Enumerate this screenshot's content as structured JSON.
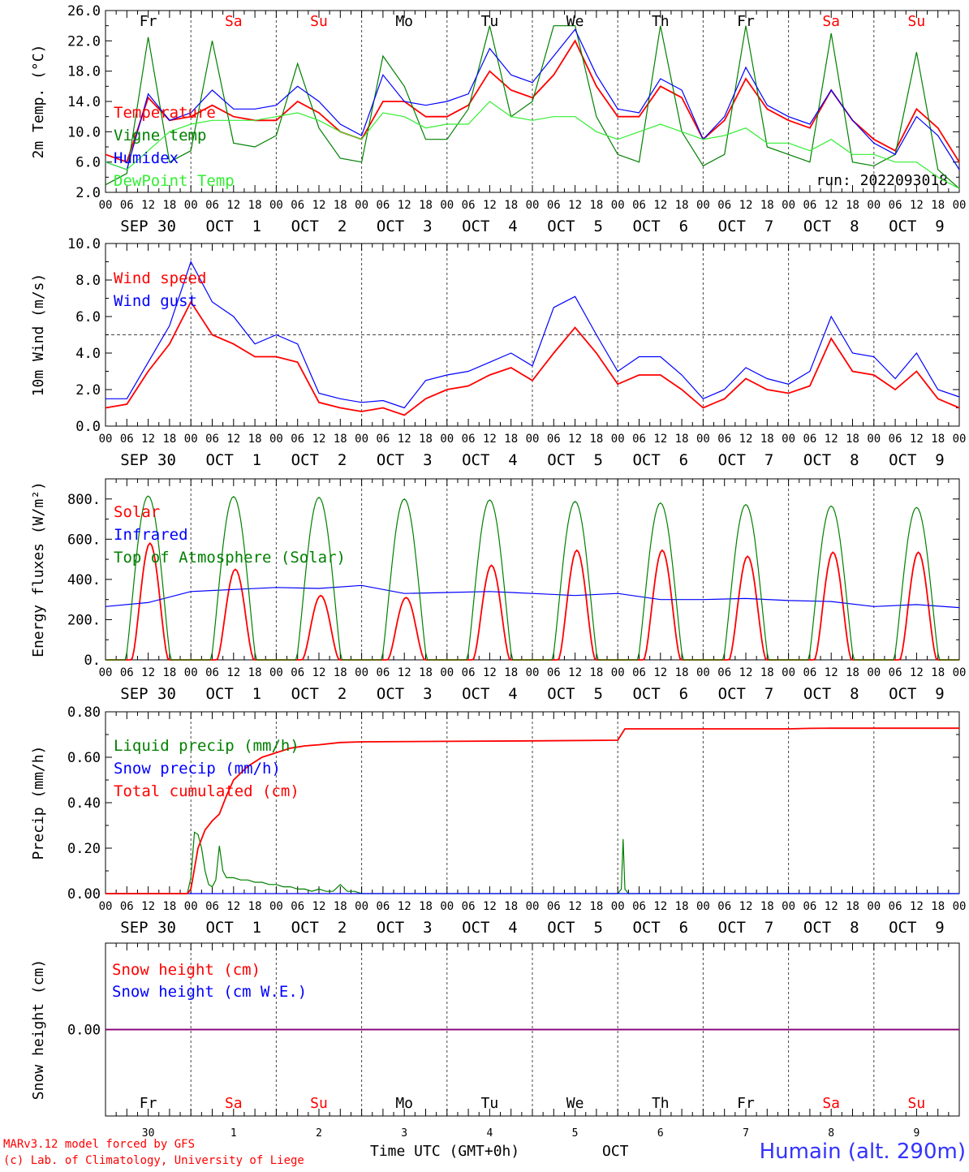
{
  "run_label": "run: 2022093018",
  "footer": {
    "credit_line1": "MARv3.12 model forced by GFS",
    "credit_line2": "(c) Lab. of Climatology, University of Liege",
    "xlabel": "Time UTC (GMT+0h)",
    "month": "OCT",
    "station": "Humain (alt. 290m)"
  },
  "days": [
    {
      "abbr": "Fr",
      "weekend": false,
      "date_label": "SEP 30",
      "day_num": "30"
    },
    {
      "abbr": "Sa",
      "weekend": true,
      "date_label": "OCT  1",
      "day_num": "1"
    },
    {
      "abbr": "Su",
      "weekend": true,
      "date_label": "OCT  2",
      "day_num": "2"
    },
    {
      "abbr": "Mo",
      "weekend": false,
      "date_label": "OCT  3",
      "day_num": "3"
    },
    {
      "abbr": "Tu",
      "weekend": false,
      "date_label": "OCT  4",
      "day_num": "4"
    },
    {
      "abbr": "We",
      "weekend": false,
      "date_label": "OCT  5",
      "day_num": "5"
    },
    {
      "abbr": "Th",
      "weekend": false,
      "date_label": "OCT  6",
      "day_num": "6"
    },
    {
      "abbr": "Fr",
      "weekend": false,
      "date_label": "OCT  7",
      "day_num": "7"
    },
    {
      "abbr": "Sa",
      "weekend": true,
      "date_label": "OCT  8",
      "day_num": "8"
    },
    {
      "abbr": "Su",
      "weekend": true,
      "date_label": "OCT  9",
      "day_num": "9"
    }
  ],
  "hour_ticks": [
    "00",
    "06",
    "12",
    "18"
  ],
  "colors": {
    "red": "#ff0000",
    "green": "#008000",
    "blue": "#0000ff",
    "lightgreen": "#33ee33",
    "purple": "#800080",
    "station": "#3333ff"
  },
  "chart_data": [
    {
      "type": "line",
      "ylabel": "2m Temp. (°C)",
      "ylim": [
        2,
        26
      ],
      "yticks": [
        "2.0",
        "6.0",
        "10.0",
        "14.0",
        "18.0",
        "22.0",
        "26.0"
      ],
      "x_unit": "hours since SEP 30 00 UTC",
      "series": [
        {
          "name": "Temperature",
          "color": "red",
          "x": [
            0,
            6,
            12,
            18,
            24,
            30,
            36,
            42,
            48,
            54,
            60,
            66,
            72,
            78,
            84,
            90,
            96,
            102,
            108,
            114,
            120,
            126,
            132,
            138,
            144,
            150,
            156,
            162,
            168,
            174,
            180,
            186,
            192,
            198,
            204,
            210,
            216,
            222,
            228,
            234,
            240
          ],
          "y": [
            7,
            6,
            14.5,
            11.5,
            12,
            13.5,
            12,
            11.5,
            11.5,
            14,
            12.5,
            10,
            9,
            14,
            14,
            12,
            12,
            13.5,
            18,
            15.5,
            14.5,
            17.5,
            22,
            16,
            12,
            12,
            16,
            14.5,
            9,
            11.5,
            17,
            13,
            11.5,
            10.5,
            15.5,
            11.5,
            9,
            7.5,
            13,
            10.5,
            6
          ]
        },
        {
          "name": "Vigne temp",
          "color": "green",
          "x": [
            0,
            6,
            12,
            18,
            24,
            30,
            36,
            42,
            48,
            54,
            60,
            66,
            72,
            78,
            84,
            90,
            96,
            102,
            108,
            114,
            120,
            126,
            132,
            138,
            144,
            150,
            156,
            162,
            168,
            174,
            180,
            186,
            192,
            198,
            204,
            210,
            216,
            222,
            228,
            234,
            240
          ],
          "y": [
            3,
            4.5,
            22.5,
            6,
            7.5,
            22,
            8.5,
            8,
            9.5,
            19,
            10.5,
            6.5,
            6,
            20,
            16,
            9,
            9,
            13,
            24,
            12,
            14,
            24,
            24,
            12,
            7,
            6,
            24,
            10,
            5.5,
            7,
            24,
            8,
            7,
            6,
            23,
            6,
            5.5,
            7,
            20.5,
            5,
            2.5
          ]
        },
        {
          "name": "Humidex",
          "color": "blue",
          "x": [
            0,
            6,
            12,
            18,
            24,
            30,
            36,
            42,
            48,
            54,
            60,
            66,
            72,
            78,
            84,
            90,
            96,
            102,
            108,
            114,
            120,
            126,
            132,
            138,
            144,
            150,
            156,
            162,
            168,
            174,
            180,
            186,
            192,
            198,
            204,
            210,
            216,
            222,
            228,
            234,
            240
          ],
          "y": [
            6,
            5,
            15,
            11.5,
            12.5,
            15.5,
            13,
            13,
            13.5,
            16,
            14,
            11,
            9.5,
            17.5,
            14,
            13.5,
            14,
            15,
            21,
            17.5,
            16.5,
            20,
            23.5,
            17.5,
            13,
            12.5,
            17,
            15.5,
            9,
            12,
            18.5,
            13.5,
            12,
            11,
            15.5,
            11.5,
            8.5,
            7,
            12,
            9.5,
            5
          ]
        },
        {
          "name": "DewPoint Temp",
          "color": "lightgreen",
          "x": [
            0,
            6,
            12,
            18,
            24,
            30,
            36,
            42,
            48,
            54,
            60,
            66,
            72,
            78,
            84,
            90,
            96,
            102,
            108,
            114,
            120,
            126,
            132,
            138,
            144,
            150,
            156,
            162,
            168,
            174,
            180,
            186,
            192,
            198,
            204,
            210,
            216,
            222,
            228,
            234,
            240
          ],
          "y": [
            6,
            5,
            7.5,
            10,
            11,
            11.5,
            11.5,
            11.5,
            12,
            12.5,
            11.5,
            10,
            9,
            12.5,
            12,
            10.5,
            11,
            11,
            14,
            12,
            11.5,
            12,
            12,
            10,
            9,
            10,
            11,
            10,
            9,
            9.5,
            10.5,
            8.5,
            8.5,
            7.5,
            9,
            7,
            7,
            6,
            6,
            4,
            2.5
          ]
        }
      ],
      "hlines": []
    },
    {
      "type": "line",
      "ylabel": "10m Wind (m/s)",
      "ylim": [
        0,
        10
      ],
      "yticks": [
        "0.0",
        "2.0",
        "4.0",
        "6.0",
        "8.0",
        "10.0"
      ],
      "x_unit": "hours since SEP 30 00 UTC",
      "series": [
        {
          "name": "Wind speed",
          "color": "red",
          "x": [
            0,
            6,
            12,
            18,
            24,
            30,
            36,
            42,
            48,
            54,
            60,
            66,
            72,
            78,
            84,
            90,
            96,
            102,
            108,
            114,
            120,
            126,
            132,
            138,
            144,
            150,
            156,
            162,
            168,
            174,
            180,
            186,
            192,
            198,
            204,
            210,
            216,
            222,
            228,
            234,
            240
          ],
          "y": [
            1,
            1.2,
            3,
            4.5,
            6.8,
            5,
            4.5,
            3.8,
            3.8,
            3.5,
            1.3,
            1,
            0.8,
            1,
            0.6,
            1.5,
            2,
            2.2,
            2.8,
            3.2,
            2.5,
            4,
            5.4,
            4,
            2.3,
            2.8,
            2.8,
            2,
            1,
            1.5,
            2.6,
            2,
            1.8,
            2.2,
            4.8,
            3,
            2.8,
            2,
            3,
            1.5,
            1
          ]
        },
        {
          "name": "Wind gust",
          "color": "blue",
          "x": [
            0,
            6,
            12,
            18,
            24,
            30,
            36,
            42,
            48,
            54,
            60,
            66,
            72,
            78,
            84,
            90,
            96,
            102,
            108,
            114,
            120,
            126,
            132,
            138,
            144,
            150,
            156,
            162,
            168,
            174,
            180,
            186,
            192,
            198,
            204,
            210,
            216,
            222,
            228,
            234,
            240
          ],
          "y": [
            1.5,
            1.5,
            3.5,
            5.5,
            9,
            6.8,
            6,
            4.5,
            5,
            4.5,
            1.8,
            1.5,
            1.3,
            1.4,
            1,
            2.5,
            2.8,
            3,
            3.5,
            4,
            3.3,
            6.5,
            7.1,
            5,
            3,
            3.8,
            3.8,
            2.8,
            1.5,
            2,
            3.2,
            2.6,
            2.3,
            3,
            6,
            4,
            3.8,
            2.6,
            4,
            2,
            1.6
          ]
        }
      ],
      "hlines": [
        {
          "y": 5,
          "style": "dashed"
        }
      ]
    },
    {
      "type": "line",
      "ylabel": "Energy fluxes (W/m²)",
      "ylim": [
        0,
        900
      ],
      "yticks": [
        "0.",
        "200.",
        "400.",
        "600.",
        "800."
      ],
      "x_unit": "hours since SEP 30 00 UTC",
      "series": [
        {
          "name": "Solar",
          "color": "red",
          "peak_hour": 12.5,
          "daily_peaks": [
            580,
            450,
            320,
            310,
            470,
            545,
            545,
            515,
            535,
            535
          ]
        },
        {
          "name": "Infrared",
          "color": "blue",
          "x": [
            0,
            12,
            24,
            36,
            48,
            60,
            72,
            84,
            96,
            108,
            120,
            132,
            144,
            156,
            168,
            180,
            192,
            204,
            216,
            228,
            240
          ],
          "y": [
            265,
            285,
            340,
            350,
            360,
            355,
            370,
            330,
            335,
            340,
            330,
            320,
            330,
            300,
            300,
            305,
            295,
            290,
            265,
            275,
            260
          ]
        },
        {
          "name": "Top of Atmosphere (Solar)",
          "color": "green",
          "peak_hour": 12,
          "daily_peaks": [
            815,
            812,
            808,
            800,
            795,
            788,
            780,
            772,
            765,
            758
          ]
        }
      ],
      "hlines": []
    },
    {
      "type": "line",
      "ylabel": "Precip (mm/h)",
      "ylim": [
        0,
        0.8
      ],
      "yticks": [
        "0.00",
        "0.20",
        "0.40",
        "0.60",
        "0.80"
      ],
      "x_unit": "hours since SEP 30 00 UTC",
      "series": [
        {
          "name": "Liquid precip (mm/h)",
          "color": "green",
          "x": [
            0,
            23,
            24,
            25,
            26,
            27,
            28,
            29,
            30,
            31,
            32,
            33,
            34,
            36,
            38,
            40,
            42,
            44,
            46,
            48,
            50,
            52,
            54,
            56,
            58,
            60,
            62,
            64,
            66,
            68,
            70,
            72,
            96,
            120,
            144,
            145,
            145.5,
            146,
            147,
            240
          ],
          "y": [
            0,
            0,
            0.07,
            0.27,
            0.26,
            0.2,
            0.1,
            0.04,
            0.03,
            0.06,
            0.21,
            0.1,
            0.07,
            0.07,
            0.06,
            0.06,
            0.05,
            0.05,
            0.04,
            0.04,
            0.03,
            0.03,
            0.02,
            0.02,
            0.01,
            0.02,
            0.01,
            0.01,
            0.04,
            0.01,
            0.01,
            0,
            0,
            0,
            0,
            0.02,
            0.24,
            0.02,
            0,
            0
          ]
        },
        {
          "name": "Snow precip (mm/h)",
          "color": "blue",
          "x": [
            0,
            240
          ],
          "y": [
            0,
            0
          ]
        },
        {
          "name": "Total cumulated (cm)",
          "color": "red",
          "x": [
            0,
            23,
            24,
            26,
            28,
            30,
            32,
            34,
            36,
            40,
            44,
            48,
            52,
            56,
            60,
            66,
            72,
            96,
            120,
            144,
            145,
            146,
            150,
            168,
            192,
            198,
            204,
            216,
            240
          ],
          "y": [
            0,
            0,
            0.02,
            0.2,
            0.28,
            0.32,
            0.35,
            0.43,
            0.5,
            0.56,
            0.6,
            0.62,
            0.64,
            0.65,
            0.655,
            0.665,
            0.668,
            0.67,
            0.672,
            0.675,
            0.7,
            0.725,
            0.725,
            0.725,
            0.725,
            0.727,
            0.728,
            0.728,
            0.728
          ]
        }
      ],
      "hlines": []
    },
    {
      "type": "line",
      "ylabel": "Snow height (cm)",
      "ylim": [
        -1,
        1
      ],
      "yticks": [
        "0.00"
      ],
      "x_unit": "hours since SEP 30 00 UTC",
      "series": [
        {
          "name": "Snow height (cm)",
          "color": "red",
          "x": [
            0,
            240
          ],
          "y": [
            0,
            0
          ]
        },
        {
          "name": "Snow height (cm W.E.)",
          "color": "blue",
          "x": [
            0,
            240
          ],
          "y": [
            0,
            0
          ]
        }
      ],
      "hlines": []
    }
  ]
}
